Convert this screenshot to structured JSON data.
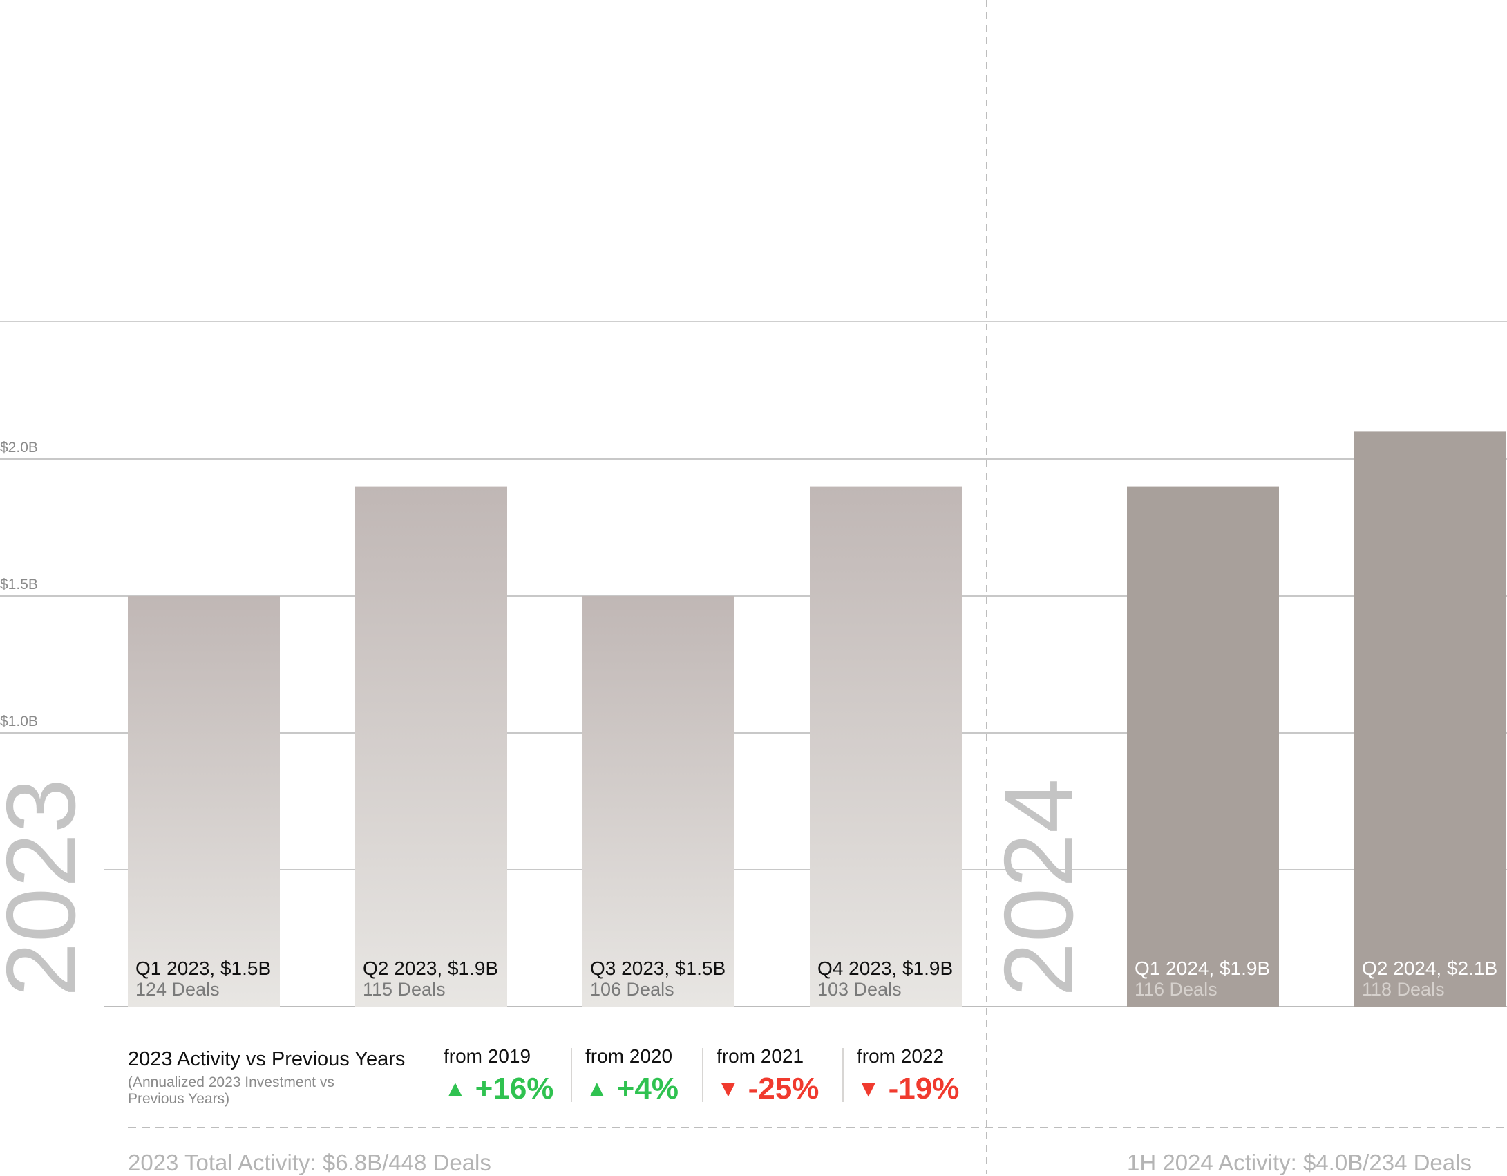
{
  "chart_data": {
    "type": "bar",
    "ylim": [
      0,
      2.0
    ],
    "y_ticks": [
      {
        "value": 1.0,
        "label": "$1.0B"
      },
      {
        "value": 1.5,
        "label": "$1.5B"
      },
      {
        "value": 2.0,
        "label": "$2.0B"
      }
    ],
    "grid": true,
    "years": [
      {
        "label": "2023",
        "total": "2023 Total Activity: $6.8B/448 Deals"
      },
      {
        "label": "2024",
        "total": "1H 2024 Activity: $4.0B/234 Deals"
      }
    ],
    "categories": [
      "Q1 2023",
      "Q2 2023",
      "Q3 2023",
      "Q4 2023",
      "Q1 2024",
      "Q2 2024"
    ],
    "values": [
      1.5,
      1.9,
      1.5,
      1.9,
      1.9,
      2.1
    ],
    "bars": [
      {
        "label": "Q1 2023, $1.5B",
        "deals": "124 Deals",
        "value": 1.5,
        "year": "2023"
      },
      {
        "label": "Q2 2023, $1.9B",
        "deals": "115 Deals",
        "value": 1.9,
        "year": "2023"
      },
      {
        "label": "Q3 2023, $1.5B",
        "deals": "106 Deals",
        "value": 1.5,
        "year": "2023"
      },
      {
        "label": "Q4 2023, $1.9B",
        "deals": "103 Deals",
        "value": 1.9,
        "year": "2023"
      },
      {
        "label": "Q1 2024, $1.9B",
        "deals": "116 Deals",
        "value": 1.9,
        "year": "2024"
      },
      {
        "label": "Q2 2024, $2.1B",
        "deals": "118 Deals",
        "value": 2.1,
        "year": "2024"
      }
    ]
  },
  "comparison": {
    "heading": "2023 Activity vs Previous Years",
    "subheading": "(Annualized 2023 Investment vs Previous Years)",
    "items": [
      {
        "label": "from 2019",
        "value": "+16%",
        "direction": "up"
      },
      {
        "label": "from 2020",
        "value": "+4%",
        "direction": "up"
      },
      {
        "label": "from 2021",
        "value": "-25%",
        "direction": "down"
      },
      {
        "label": "from 2022",
        "value": "-19%",
        "direction": "down"
      }
    ]
  },
  "colors": {
    "bar_2023_top": "#c0b7b5",
    "bar_2023_bottom": "#e8e6e3",
    "bar_2024": "#a8a09b",
    "up": "#2fc250",
    "down": "#f03a2e",
    "year_text": "#c4c4c4",
    "grid": "#c8c8c8"
  },
  "icons": {
    "up": "triangle-up-icon",
    "down": "triangle-down-icon"
  }
}
